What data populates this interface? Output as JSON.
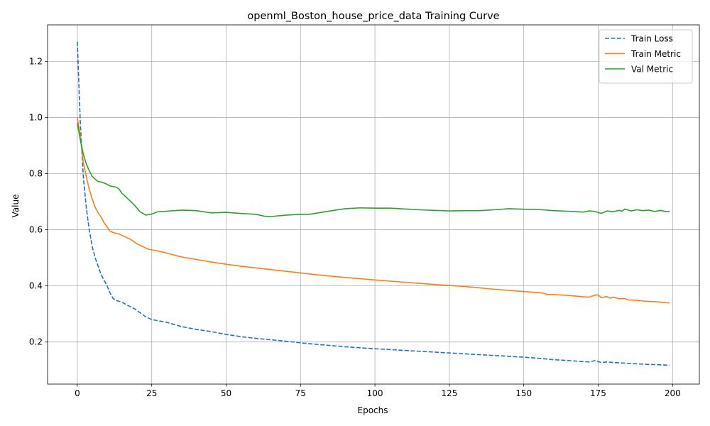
{
  "chart_data": {
    "type": "line",
    "title": "openml_Boston_house_price_data Training Curve",
    "xlabel": "Epochs",
    "ylabel": "Value",
    "xlim": [
      -10,
      209
    ],
    "ylim": [
      0.05,
      1.33
    ],
    "x_ticks": [
      0,
      25,
      50,
      75,
      100,
      125,
      150,
      175,
      200
    ],
    "y_ticks": [
      0.2,
      0.4,
      0.6,
      0.8,
      1.0,
      1.2
    ],
    "x_tick_labels": [
      "0",
      "25",
      "50",
      "75",
      "100",
      "125",
      "150",
      "175",
      "200"
    ],
    "y_tick_labels": [
      "0.2",
      "0.4",
      "0.6",
      "0.8",
      "1.0",
      "1.2"
    ],
    "grid": true,
    "legend_position": "top-right",
    "series": [
      {
        "name": "Train Loss",
        "color": "#1f77b4",
        "style": "dashed",
        "points": [
          [
            0,
            1.27
          ],
          [
            1,
            0.98
          ],
          [
            2,
            0.79
          ],
          [
            3,
            0.68
          ],
          [
            4,
            0.6
          ],
          [
            5,
            0.54
          ],
          [
            6,
            0.5
          ],
          [
            7,
            0.47
          ],
          [
            8,
            0.44
          ],
          [
            9,
            0.42
          ],
          [
            10,
            0.4
          ],
          [
            11,
            0.375
          ],
          [
            12,
            0.355
          ],
          [
            13,
            0.348
          ],
          [
            15,
            0.342
          ],
          [
            17,
            0.33
          ],
          [
            19,
            0.32
          ],
          [
            21,
            0.305
          ],
          [
            23,
            0.29
          ],
          [
            25,
            0.28
          ],
          [
            30,
            0.27
          ],
          [
            35,
            0.255
          ],
          [
            40,
            0.245
          ],
          [
            45,
            0.237
          ],
          [
            50,
            0.227
          ],
          [
            55,
            0.219
          ],
          [
            60,
            0.213
          ],
          [
            70,
            0.203
          ],
          [
            75,
            0.197
          ],
          [
            80,
            0.192
          ],
          [
            90,
            0.183
          ],
          [
            100,
            0.176
          ],
          [
            110,
            0.17
          ],
          [
            120,
            0.164
          ],
          [
            130,
            0.158
          ],
          [
            140,
            0.152
          ],
          [
            150,
            0.146
          ],
          [
            155,
            0.142
          ],
          [
            160,
            0.137
          ],
          [
            165,
            0.134
          ],
          [
            170,
            0.13
          ],
          [
            172,
            0.129
          ],
          [
            174,
            0.134
          ],
          [
            176,
            0.127
          ],
          [
            178,
            0.129
          ],
          [
            180,
            0.127
          ],
          [
            185,
            0.124
          ],
          [
            190,
            0.121
          ],
          [
            195,
            0.119
          ],
          [
            199,
            0.117
          ]
        ]
      },
      {
        "name": "Train Metric",
        "color": "#ff7f0e",
        "style": "solid",
        "points": [
          [
            0,
            1.0
          ],
          [
            1,
            0.93
          ],
          [
            2,
            0.84
          ],
          [
            3,
            0.79
          ],
          [
            4,
            0.745
          ],
          [
            5,
            0.71
          ],
          [
            6,
            0.68
          ],
          [
            7,
            0.66
          ],
          [
            8,
            0.645
          ],
          [
            9,
            0.625
          ],
          [
            10,
            0.61
          ],
          [
            11,
            0.595
          ],
          [
            12,
            0.59
          ],
          [
            14,
            0.585
          ],
          [
            16,
            0.575
          ],
          [
            18,
            0.565
          ],
          [
            20,
            0.55
          ],
          [
            22,
            0.54
          ],
          [
            24,
            0.53
          ],
          [
            27,
            0.525
          ],
          [
            30,
            0.517
          ],
          [
            35,
            0.503
          ],
          [
            40,
            0.494
          ],
          [
            45,
            0.485
          ],
          [
            50,
            0.477
          ],
          [
            55,
            0.47
          ],
          [
            60,
            0.464
          ],
          [
            70,
            0.452
          ],
          [
            80,
            0.44
          ],
          [
            90,
            0.43
          ],
          [
            100,
            0.421
          ],
          [
            110,
            0.413
          ],
          [
            120,
            0.405
          ],
          [
            130,
            0.398
          ],
          [
            140,
            0.388
          ],
          [
            150,
            0.38
          ],
          [
            156,
            0.375
          ],
          [
            158,
            0.37
          ],
          [
            165,
            0.366
          ],
          [
            170,
            0.361
          ],
          [
            172,
            0.36
          ],
          [
            174,
            0.367
          ],
          [
            175,
            0.368
          ],
          [
            176,
            0.358
          ],
          [
            178,
            0.362
          ],
          [
            179,
            0.356
          ],
          [
            180,
            0.36
          ],
          [
            182,
            0.354
          ],
          [
            184,
            0.355
          ],
          [
            185,
            0.35
          ],
          [
            188,
            0.349
          ],
          [
            190,
            0.346
          ],
          [
            195,
            0.343
          ],
          [
            199,
            0.339
          ]
        ]
      },
      {
        "name": "Val Metric",
        "color": "#2ca02c",
        "style": "solid",
        "points": [
          [
            0,
            0.98
          ],
          [
            1,
            0.92
          ],
          [
            2,
            0.87
          ],
          [
            3,
            0.835
          ],
          [
            4,
            0.81
          ],
          [
            5,
            0.79
          ],
          [
            6,
            0.78
          ],
          [
            7,
            0.772
          ],
          [
            8,
            0.77
          ],
          [
            10,
            0.762
          ],
          [
            11,
            0.756
          ],
          [
            13,
            0.752
          ],
          [
            14,
            0.745
          ],
          [
            15,
            0.73
          ],
          [
            17,
            0.71
          ],
          [
            19,
            0.69
          ],
          [
            21,
            0.665
          ],
          [
            23,
            0.652
          ],
          [
            25,
            0.656
          ],
          [
            27,
            0.664
          ],
          [
            30,
            0.666
          ],
          [
            35,
            0.67
          ],
          [
            40,
            0.668
          ],
          [
            45,
            0.66
          ],
          [
            50,
            0.662
          ],
          [
            55,
            0.658
          ],
          [
            60,
            0.655
          ],
          [
            63,
            0.648
          ],
          [
            65,
            0.647
          ],
          [
            70,
            0.652
          ],
          [
            75,
            0.655
          ],
          [
            78,
            0.655
          ],
          [
            85,
            0.667
          ],
          [
            90,
            0.675
          ],
          [
            95,
            0.678
          ],
          [
            100,
            0.677
          ],
          [
            105,
            0.677
          ],
          [
            110,
            0.674
          ],
          [
            115,
            0.671
          ],
          [
            120,
            0.669
          ],
          [
            125,
            0.667
          ],
          [
            130,
            0.668
          ],
          [
            135,
            0.668
          ],
          [
            140,
            0.671
          ],
          [
            145,
            0.675
          ],
          [
            150,
            0.673
          ],
          [
            155,
            0.672
          ],
          [
            160,
            0.668
          ],
          [
            165,
            0.666
          ],
          [
            170,
            0.663
          ],
          [
            172,
            0.667
          ],
          [
            174,
            0.665
          ],
          [
            176,
            0.658
          ],
          [
            178,
            0.667
          ],
          [
            180,
            0.664
          ],
          [
            182,
            0.669
          ],
          [
            183,
            0.666
          ],
          [
            184,
            0.674
          ],
          [
            186,
            0.667
          ],
          [
            188,
            0.671
          ],
          [
            190,
            0.668
          ],
          [
            192,
            0.67
          ],
          [
            194,
            0.665
          ],
          [
            196,
            0.669
          ],
          [
            198,
            0.664
          ],
          [
            199,
            0.666
          ]
        ]
      }
    ]
  }
}
